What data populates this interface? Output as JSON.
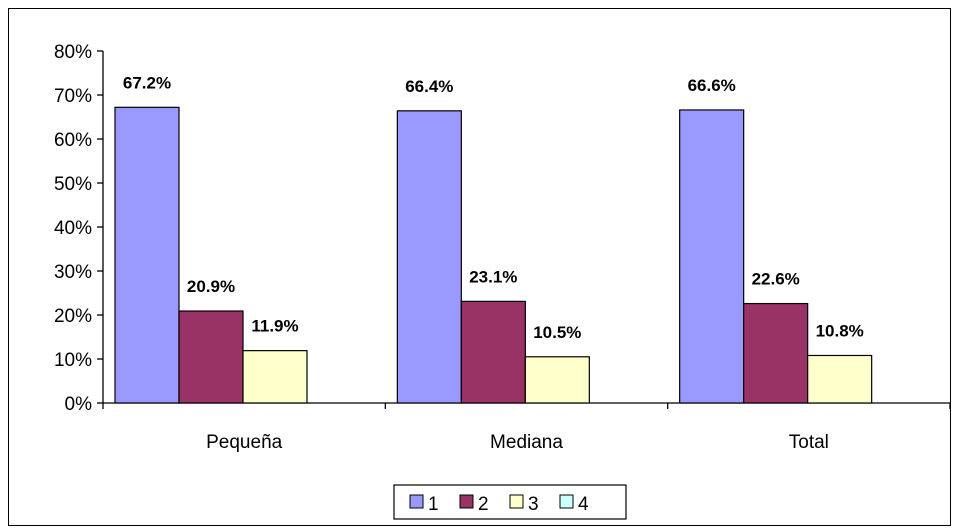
{
  "chart_data": {
    "type": "bar",
    "categories": [
      "Pequeña",
      "Mediana",
      "Total"
    ],
    "series": [
      {
        "name": "1",
        "values": [
          67.2,
          66.4,
          66.6
        ],
        "labels": [
          "67.2%",
          "66.4%",
          "66.6%"
        ],
        "color": "#9999FF"
      },
      {
        "name": "2",
        "values": [
          20.9,
          23.1,
          22.6
        ],
        "labels": [
          "20.9%",
          "23.1%",
          "22.6%"
        ],
        "color": "#993366"
      },
      {
        "name": "3",
        "values": [
          11.9,
          10.5,
          10.8
        ],
        "labels": [
          "11.9%",
          "10.5%",
          "10.8%"
        ],
        "color": "#FFFFCC"
      },
      {
        "name": "4",
        "values": [
          null,
          null,
          null
        ],
        "labels": [
          "",
          "",
          ""
        ],
        "color": "#CCFFFF"
      }
    ],
    "yticks": [
      "0%",
      "10%",
      "20%",
      "30%",
      "40%",
      "50%",
      "60%",
      "70%",
      "80%"
    ],
    "ylim": [
      0,
      80
    ],
    "grid": false,
    "legend_position": "bottom"
  }
}
